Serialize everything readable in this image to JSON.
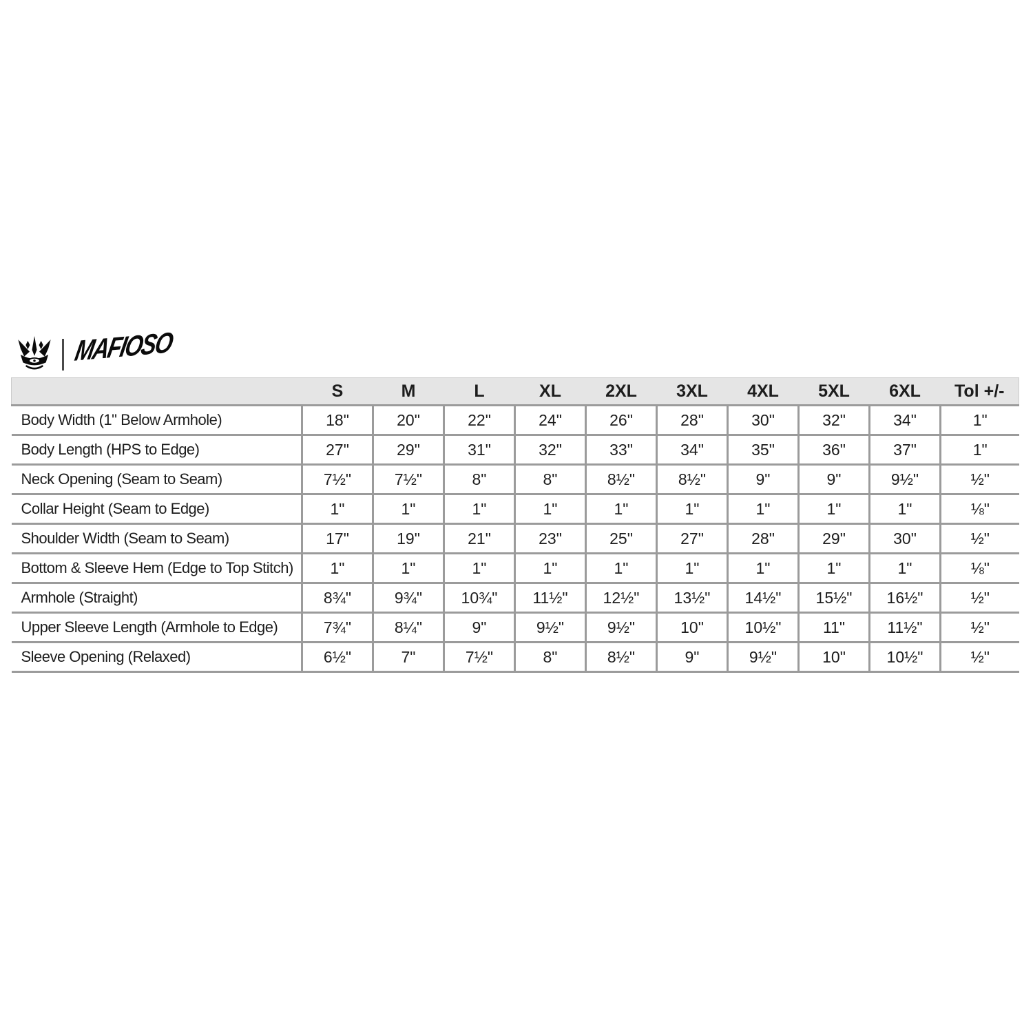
{
  "brand": {
    "wordmark": "MAFIOSO",
    "crown_icon": "crown-icon"
  },
  "colors": {
    "header_bg": "#e5e5e5",
    "grid_border": "#9b9b9b",
    "header_outline": "#cbcbcb",
    "text": "#1d1d1d",
    "logo": "#0b0b0b"
  },
  "chart_data": {
    "type": "table",
    "title": "Apparel size measurement chart (inches)",
    "columns": [
      "S",
      "M",
      "L",
      "XL",
      "2XL",
      "3XL",
      "4XL",
      "5XL",
      "6XL",
      "Tol +/-"
    ],
    "rows": [
      {
        "label": "Body Width (1\" Below Armhole)",
        "values": [
          "18\"",
          "20\"",
          "22\"",
          "24\"",
          "26\"",
          "28\"",
          "30\"",
          "32\"",
          "34\"",
          "1\""
        ]
      },
      {
        "label": "Body Length (HPS to Edge)",
        "values": [
          "27\"",
          "29\"",
          "31\"",
          "32\"",
          "33\"",
          "34\"",
          "35\"",
          "36\"",
          "37\"",
          "1\""
        ]
      },
      {
        "label": "Neck Opening (Seam to Seam)",
        "values": [
          "7½\"",
          "7½\"",
          "8\"",
          "8\"",
          "8½\"",
          "8½\"",
          "9\"",
          "9\"",
          "9½\"",
          "½\""
        ]
      },
      {
        "label": "Collar Height (Seam to Edge)",
        "values": [
          "1\"",
          "1\"",
          "1\"",
          "1\"",
          "1\"",
          "1\"",
          "1\"",
          "1\"",
          "1\"",
          "⅛\""
        ]
      },
      {
        "label": "Shoulder Width (Seam to Seam)",
        "values": [
          "17\"",
          "19\"",
          "21\"",
          "23\"",
          "25\"",
          "27\"",
          "28\"",
          "29\"",
          "30\"",
          "½\""
        ]
      },
      {
        "label": "Bottom & Sleeve Hem (Edge to Top Stitch)",
        "values": [
          "1\"",
          "1\"",
          "1\"",
          "1\"",
          "1\"",
          "1\"",
          "1\"",
          "1\"",
          "1\"",
          "⅛\""
        ]
      },
      {
        "label": "Armhole (Straight)",
        "values": [
          "8¾\"",
          "9¾\"",
          "10¾\"",
          "11½\"",
          "12½\"",
          "13½\"",
          "14½\"",
          "15½\"",
          "16½\"",
          "½\""
        ]
      },
      {
        "label": "Upper Sleeve Length (Armhole to Edge)",
        "values": [
          "7¾\"",
          "8¼\"",
          "9\"",
          "9½\"",
          "9½\"",
          "10\"",
          "10½\"",
          "11\"",
          "11½\"",
          "½\""
        ]
      },
      {
        "label": "Sleeve Opening (Relaxed)",
        "values": [
          "6½\"",
          "7\"",
          "7½\"",
          "8\"",
          "8½\"",
          "9\"",
          "9½\"",
          "10\"",
          "10½\"",
          "½\""
        ]
      }
    ]
  }
}
